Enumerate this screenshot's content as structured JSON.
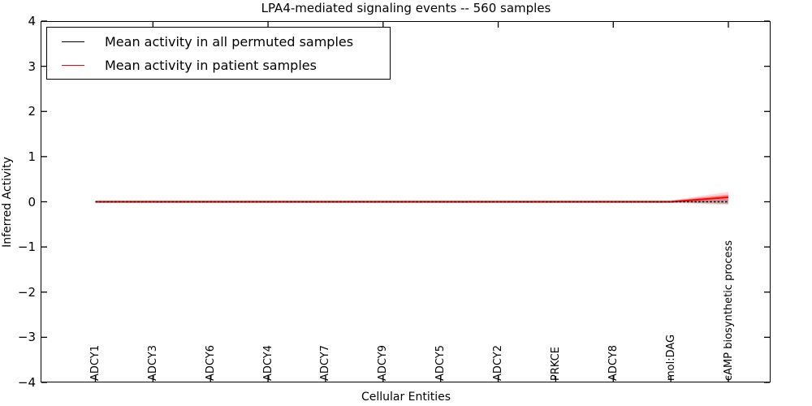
{
  "chart_data": {
    "type": "line",
    "title": "LPA4-mediated signaling events -- 560 samples",
    "xlabel": "Cellular Entities",
    "ylabel": "Inferred Activity",
    "ylim": [
      -4,
      4
    ],
    "yticks": [
      4,
      3,
      2,
      1,
      0,
      -1,
      -2,
      -3,
      -4
    ],
    "grid": false,
    "legend_position": "upper left",
    "categories": [
      "ADCY1",
      "ADCY3",
      "ADCY6",
      "ADCY4",
      "ADCY7",
      "ADCY9",
      "ADCY5",
      "ADCY2",
      "PRKCE",
      "ADCY8",
      "mol:DAG",
      "cAMP biosynthetic process"
    ],
    "series": [
      {
        "name": "Mean activity in all permuted samples",
        "color": "#000000",
        "line_style": "dashed",
        "values": [
          0,
          0,
          0,
          0,
          0,
          0,
          0,
          0,
          0,
          0,
          0,
          0
        ],
        "bands": [
          {
            "upper": [
              0.01,
              0.01,
              0.01,
              0.01,
              0.01,
              0.01,
              0.01,
              0.01,
              0.01,
              0.01,
              0.01,
              0.05
            ],
            "lower": [
              -0.01,
              -0.01,
              -0.01,
              -0.01,
              -0.01,
              -0.01,
              -0.01,
              -0.01,
              -0.01,
              -0.01,
              -0.01,
              -0.05
            ],
            "fill": "rgba(100,100,100,0.35)"
          }
        ]
      },
      {
        "name": "Mean activity in patient samples",
        "color": "#ff0000",
        "line_style": "solid",
        "values": [
          0,
          0,
          0,
          0,
          0,
          0,
          0,
          0,
          0,
          0,
          0,
          0.1
        ],
        "bands": [
          {
            "upper": [
              0.02,
              0.02,
              0.02,
              0.02,
              0.02,
              0.02,
              0.02,
              0.02,
              0.02,
              0.02,
              0.02,
              0.16
            ],
            "lower": [
              -0.02,
              -0.02,
              -0.02,
              -0.02,
              -0.02,
              -0.02,
              -0.02,
              -0.02,
              -0.02,
              -0.02,
              -0.02,
              0.03
            ],
            "fill": "rgba(255,0,0,0.35)"
          },
          {
            "upper": [
              0.03,
              0.03,
              0.03,
              0.03,
              0.03,
              0.03,
              0.03,
              0.03,
              0.03,
              0.03,
              0.03,
              0.22
            ],
            "lower": [
              -0.03,
              -0.03,
              -0.03,
              -0.03,
              -0.03,
              -0.03,
              -0.03,
              -0.03,
              -0.03,
              -0.03,
              -0.03,
              -0.07
            ],
            "fill": "rgba(255,0,0,0.15)"
          }
        ]
      }
    ]
  }
}
